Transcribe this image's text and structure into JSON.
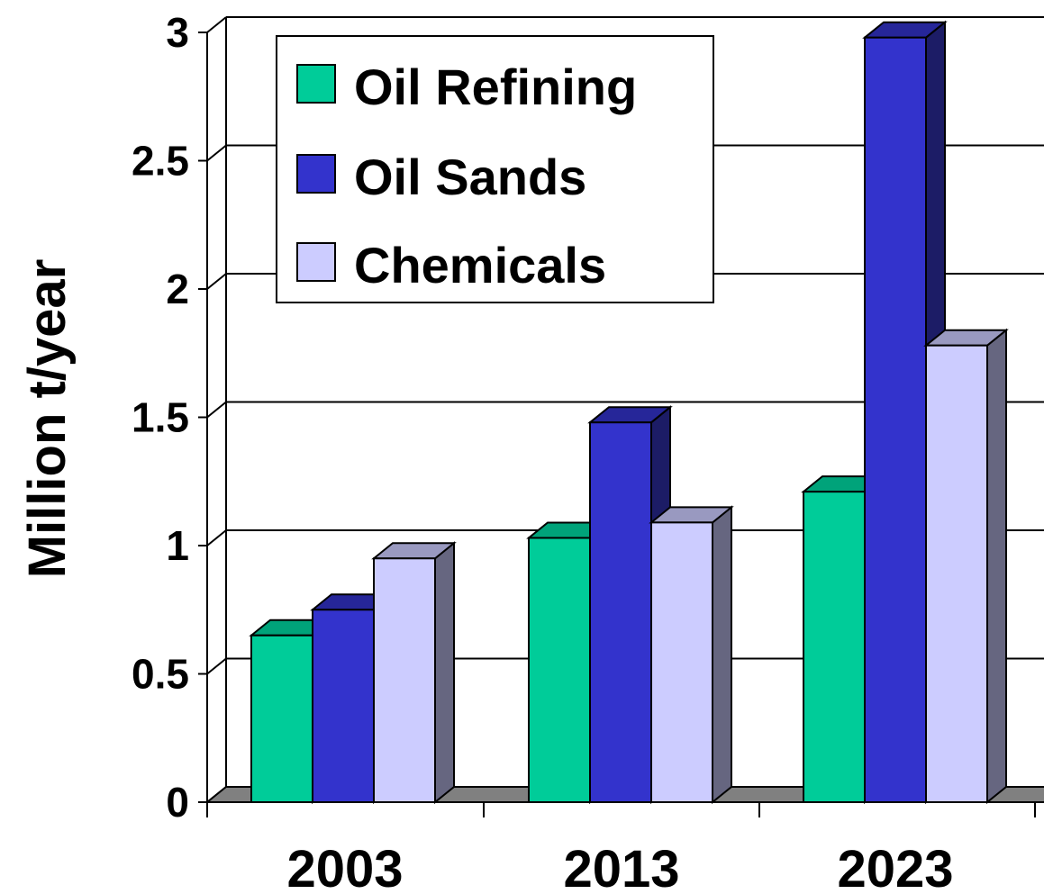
{
  "chart_data": {
    "type": "bar",
    "title": "",
    "xlabel": "",
    "ylabel": "Million t/year",
    "ylim": [
      0,
      3
    ],
    "yticks": [
      "0",
      "0.5",
      "1",
      "1.5",
      "2",
      "2.5",
      "3"
    ],
    "categories": [
      "2003",
      "2013",
      "2023"
    ],
    "series": [
      {
        "name": "Oil Refining",
        "values": [
          0.65,
          1.03,
          1.21
        ],
        "color": "#00cc99",
        "side": "#009670",
        "top": "#00a37a"
      },
      {
        "name": "Oil Sands",
        "values": [
          0.75,
          1.48,
          2.98
        ],
        "color": "#3333cc",
        "side": "#1c1c66",
        "top": "#262699"
      },
      {
        "name": "Chemicals",
        "values": [
          0.95,
          1.09,
          1.78
        ],
        "color": "#ccccff",
        "side": "#666680",
        "top": "#9999c0"
      }
    ],
    "grid": true,
    "legend": "top-left"
  }
}
